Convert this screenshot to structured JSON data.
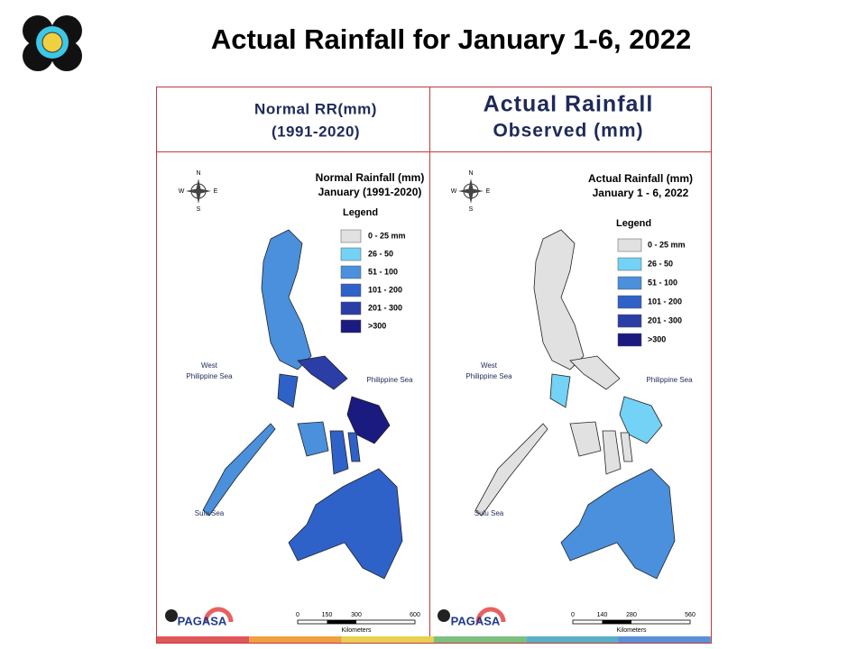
{
  "header": {
    "title": "Actual Rainfall for January 1-6, 2022"
  },
  "panels": [
    {
      "heading": [
        "Normal RR(mm)",
        "(1991-2020)"
      ],
      "map_title": [
        "Normal Rainfall (mm)",
        "January (1991-2020)"
      ],
      "legend_title": "Legend",
      "legend": [
        {
          "label": "0 - 25 mm",
          "color": "#e1e1e1"
        },
        {
          "label": "26 - 50",
          "color": "#73d2f5"
        },
        {
          "label": "51 - 100",
          "color": "#4a90dc"
        },
        {
          "label": "101 - 200",
          "color": "#2e62c8"
        },
        {
          "label": "201 - 300",
          "color": "#2a3ea6"
        },
        {
          "label": ">300",
          "color": "#1a1a80"
        }
      ],
      "seas": [
        [
          "West",
          "Philippine Sea"
        ],
        [
          "Philippine Sea"
        ],
        [
          "Sulu Sea"
        ]
      ],
      "compass": [
        "N",
        "E",
        "S",
        "W"
      ],
      "scale_ticks": [
        "0",
        "150",
        "300",
        "600"
      ],
      "scale_unit": "Kilometers",
      "logo": "PAGASA"
    },
    {
      "heading": [
        "Actual Rainfall",
        "Observed (mm)"
      ],
      "map_title": [
        "Actual Rainfall (mm)",
        "January 1 - 6, 2022"
      ],
      "legend_title": "Legend",
      "legend": [
        {
          "label": "0 - 25 mm",
          "color": "#e1e1e1"
        },
        {
          "label": "26 - 50",
          "color": "#73d2f5"
        },
        {
          "label": "51 - 100",
          "color": "#4a90dc"
        },
        {
          "label": "101 - 200",
          "color": "#2e62c8"
        },
        {
          "label": "201 - 300",
          "color": "#2a3ea6"
        },
        {
          "label": ">300",
          "color": "#1a1a80"
        }
      ],
      "seas": [
        [
          "West",
          "Philippine Sea"
        ],
        [
          "Philippine Sea"
        ],
        [
          "Sulu Sea"
        ]
      ],
      "compass": [
        "N",
        "E",
        "S",
        "W"
      ],
      "scale_ticks": [
        "0",
        "140",
        "280",
        "560"
      ],
      "scale_unit": "Kilometers",
      "logo": "PAGASA"
    }
  ]
}
